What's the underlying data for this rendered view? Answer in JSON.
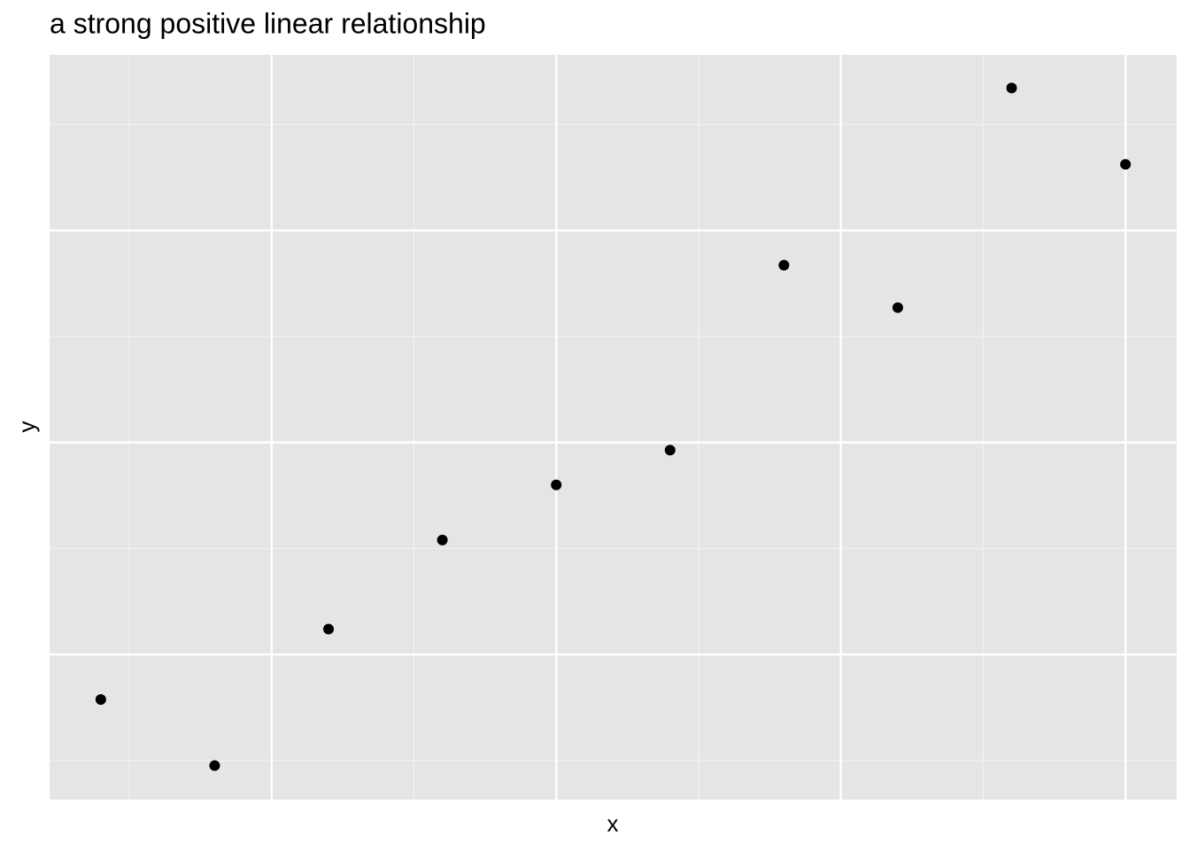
{
  "chart_data": {
    "type": "scatter",
    "title": "a strong positive linear relationship",
    "x_label": "x",
    "y_label": "y",
    "series": [
      {
        "color": "#000000",
        "x": [
          1,
          2,
          3,
          4,
          5,
          6,
          7,
          8,
          9,
          10
        ],
        "values": [
          1.97,
          1.19,
          2.8,
          3.85,
          4.5,
          4.91,
          7.09,
          6.59,
          9.18,
          8.28
        ]
      }
    ],
    "xlim": [
      0.55,
      10.45
    ],
    "ylim": [
      0.79,
      9.57
    ],
    "xticks": [
      2.5,
      5,
      7.5,
      10
    ],
    "x_minor_ticks": [
      1.25,
      3.75,
      6.25,
      8.75
    ],
    "yticks": [
      2.5,
      5,
      7.5
    ],
    "y_minor_ticks": [
      1.25,
      3.75,
      6.25,
      8.75
    ],
    "grid": true,
    "background": "#e5e5e5"
  }
}
